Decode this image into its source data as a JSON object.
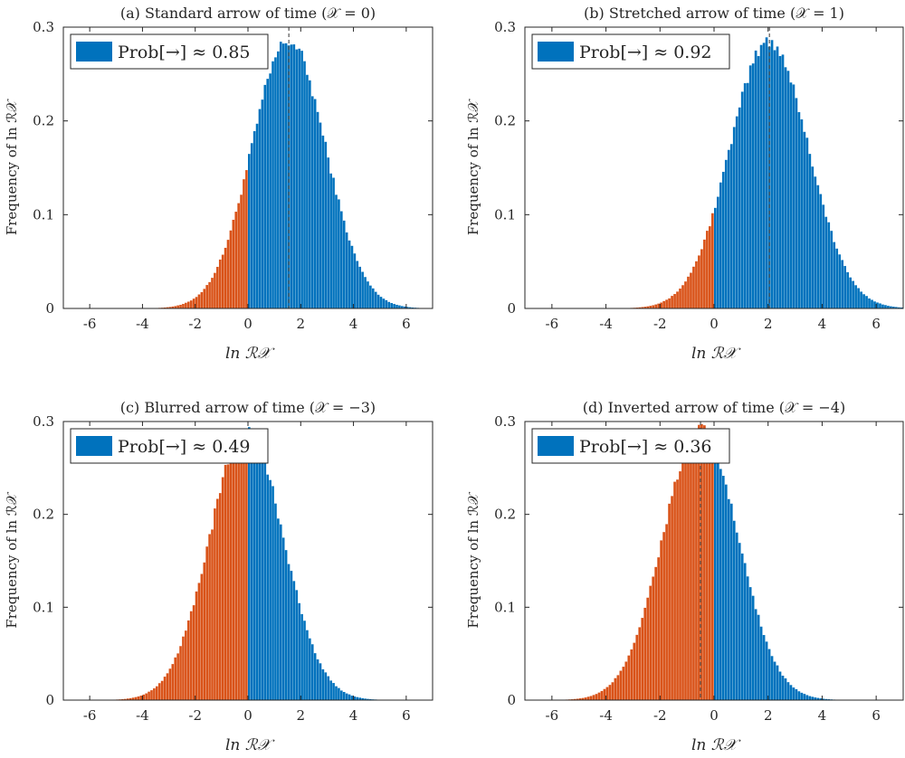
{
  "figure_title": "Four histograms of ln R_X for different arrow-of-time regimes",
  "colors": {
    "positive": "#0072BD",
    "negative": "#D95319",
    "axis": "#262626",
    "mean_line": "#555555"
  },
  "chart_data": [
    {
      "type": "bar",
      "subtype": "histogram",
      "title": "(a) Standard arrow of time (𝒳 = 0)",
      "xlabel": "ln ℛ𝒳",
      "ylabel": "Frequency of ln ℛ𝒳",
      "xlim": [
        -7,
        7
      ],
      "ylim": [
        0,
        0.3
      ],
      "xticks": [
        "-6",
        "-4",
        "-2",
        "0",
        "2",
        "4",
        "6"
      ],
      "yticks": [
        "0",
        "0.1",
        "0.2",
        "0.3"
      ],
      "distribution": {
        "mean": 1.55,
        "std": 1.4,
        "peak": 0.285,
        "range": [
          -3.8,
          6.5
        ]
      },
      "split_at": 0,
      "mean_line_x": 1.55,
      "legend": {
        "label": "Prob[→] ≈ 0.85",
        "location": "top-left"
      }
    },
    {
      "type": "bar",
      "subtype": "histogram",
      "title": "(b) Stretched arrow of time (𝒳 = 1)",
      "xlabel": "ln ℛ𝒳",
      "ylabel": "Frequency of ln ℛ𝒳",
      "xlim": [
        -7,
        7
      ],
      "ylim": [
        0,
        0.3
      ],
      "xticks": [
        "-6",
        "-4",
        "-2",
        "0",
        "2",
        "4",
        "6"
      ],
      "yticks": [
        "0",
        "0.1",
        "0.2",
        "0.3"
      ],
      "distribution": {
        "mean": 2.05,
        "std": 1.45,
        "peak": 0.285,
        "range": [
          -3.8,
          7.0
        ]
      },
      "split_at": 0,
      "mean_line_x": 2.05,
      "legend": {
        "label": "Prob[→] ≈ 0.92",
        "location": "top-left"
      }
    },
    {
      "type": "bar",
      "subtype": "histogram",
      "title": "(c) Blurred arrow of time (𝒳 = −3)",
      "xlabel": "ln ℛ𝒳",
      "ylabel": "Frequency of ln ℛ𝒳",
      "xlim": [
        -7,
        7
      ],
      "ylim": [
        0,
        0.3
      ],
      "xticks": [
        "-6",
        "-4",
        "-2",
        "0",
        "2",
        "4",
        "6"
      ],
      "yticks": [
        "0",
        "0.1",
        "0.2",
        "0.3"
      ],
      "distribution": {
        "mean": -0.05,
        "std": 1.4,
        "peak": 0.29,
        "range": [
          -5.5,
          5.2
        ]
      },
      "split_at": 0,
      "mean_line_x": null,
      "legend": {
        "label": "Prob[→] ≈ 0.49",
        "location": "top-left"
      }
    },
    {
      "type": "bar",
      "subtype": "histogram",
      "title": "(d) Inverted arrow of time (𝒳 = −4)",
      "xlabel": "ln ℛ𝒳",
      "ylabel": "Frequency of ln ℛ𝒳",
      "xlim": [
        -7,
        7
      ],
      "ylim": [
        0,
        0.3
      ],
      "xticks": [
        "-6",
        "-4",
        "-2",
        "0",
        "2",
        "4",
        "6"
      ],
      "yticks": [
        "0",
        "0.1",
        "0.2",
        "0.3"
      ],
      "distribution": {
        "mean": -0.5,
        "std": 1.4,
        "peak": 0.29,
        "range": [
          -6.0,
          4.8
        ]
      },
      "split_at": 0,
      "mean_line_x": -0.5,
      "legend": {
        "label": "Prob[→] ≈ 0.36",
        "location": "top-left"
      }
    }
  ]
}
